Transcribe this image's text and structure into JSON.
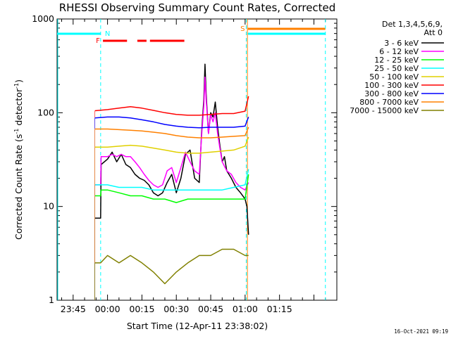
{
  "chart_data": {
    "type": "line",
    "title": "RHESSI Observing Summary Count Rates, Corrected",
    "xlabel": "Start Time (12-Apr-11 23:38:02)",
    "ylabel": "Corrected Count Rate (s",
    "ylabel_sup1": "-1",
    "ylabel_mid": " detector",
    "ylabel_sup2": "-1",
    "ylabel_end": ")",
    "yscale": "log",
    "ylim": [
      1,
      1000
    ],
    "xlim_minutes": [
      -22,
      100
    ],
    "x_tick_labels": [
      "23:45",
      "00:00",
      "00:15",
      "00:30",
      "00:45",
      "01:00",
      "01:15"
    ],
    "x_tick_minutes": [
      -15,
      0,
      15,
      30,
      45,
      60,
      75
    ],
    "y_tick_labels": [
      "1",
      "10",
      "100",
      "1000"
    ],
    "y_tick_values": [
      1,
      10,
      100,
      1000
    ],
    "legend_header_1": "Det 1,3,4,5,6,9,",
    "legend_header_2": "Att 0",
    "legend_position": "right",
    "series": [
      {
        "name": "3 - 6 keV",
        "color": "#000000",
        "points": [
          [
            -5.5,
            7.5
          ],
          [
            -3,
            7.5
          ],
          [
            -2.8,
            28
          ],
          [
            0,
            32
          ],
          [
            2,
            38
          ],
          [
            4,
            30
          ],
          [
            6,
            36
          ],
          [
            8,
            28
          ],
          [
            10,
            26
          ],
          [
            12,
            22
          ],
          [
            14,
            20
          ],
          [
            16,
            19
          ],
          [
            18,
            17
          ],
          [
            20,
            14
          ],
          [
            22,
            13
          ],
          [
            24,
            14
          ],
          [
            26,
            18
          ],
          [
            28,
            22
          ],
          [
            30,
            14
          ],
          [
            32,
            20
          ],
          [
            34,
            36
          ],
          [
            36,
            40
          ],
          [
            38,
            20
          ],
          [
            40,
            18
          ],
          [
            41,
            60
          ],
          [
            42,
            140
          ],
          [
            42.5,
            330
          ],
          [
            43,
            160
          ],
          [
            44,
            60
          ],
          [
            45,
            100
          ],
          [
            46,
            90
          ],
          [
            47,
            130
          ],
          [
            48,
            70
          ],
          [
            49,
            45
          ],
          [
            50,
            30
          ],
          [
            51,
            34
          ],
          [
            52,
            24
          ],
          [
            54,
            20
          ],
          [
            56,
            16
          ],
          [
            58,
            14
          ],
          [
            60,
            12
          ],
          [
            60.8,
            10
          ],
          [
            61.5,
            5
          ]
        ]
      },
      {
        "name": "6 - 12 keV",
        "color": "#ff00ff",
        "points": [
          [
            -5.5,
            17
          ],
          [
            -3,
            17
          ],
          [
            -2.8,
            34
          ],
          [
            0,
            34
          ],
          [
            2,
            36
          ],
          [
            4,
            34
          ],
          [
            6,
            36
          ],
          [
            8,
            34
          ],
          [
            10,
            34
          ],
          [
            12,
            30
          ],
          [
            14,
            26
          ],
          [
            16,
            22
          ],
          [
            18,
            19
          ],
          [
            20,
            17
          ],
          [
            22,
            16
          ],
          [
            24,
            17
          ],
          [
            26,
            24
          ],
          [
            28,
            26
          ],
          [
            30,
            18
          ],
          [
            32,
            26
          ],
          [
            34,
            38
          ],
          [
            36,
            30
          ],
          [
            38,
            24
          ],
          [
            40,
            22
          ],
          [
            41,
            55
          ],
          [
            42,
            120
          ],
          [
            42.5,
            240
          ],
          [
            43,
            140
          ],
          [
            44,
            60
          ],
          [
            45,
            95
          ],
          [
            46,
            80
          ],
          [
            47,
            100
          ],
          [
            48,
            60
          ],
          [
            49,
            42
          ],
          [
            50,
            30
          ],
          [
            52,
            24
          ],
          [
            54,
            22
          ],
          [
            56,
            18
          ],
          [
            58,
            16
          ],
          [
            60,
            15
          ],
          [
            61.5,
            18
          ]
        ]
      },
      {
        "name": "12 - 25 keV",
        "color": "#00ff00",
        "points": [
          [
            -5.5,
            13
          ],
          [
            -3,
            13
          ],
          [
            -2.8,
            15
          ],
          [
            0,
            15
          ],
          [
            5,
            14
          ],
          [
            10,
            13
          ],
          [
            15,
            13
          ],
          [
            20,
            12
          ],
          [
            25,
            12
          ],
          [
            30,
            11
          ],
          [
            35,
            12
          ],
          [
            40,
            12
          ],
          [
            45,
            12
          ],
          [
            50,
            12
          ],
          [
            55,
            12
          ],
          [
            60,
            12
          ],
          [
            61.5,
            22
          ]
        ]
      },
      {
        "name": "25 - 50 keV",
        "color": "#00ffff",
        "points": [
          [
            -5.5,
            17
          ],
          [
            0,
            17
          ],
          [
            5,
            16
          ],
          [
            10,
            16
          ],
          [
            15,
            16
          ],
          [
            20,
            15
          ],
          [
            25,
            15
          ],
          [
            30,
            15
          ],
          [
            35,
            15
          ],
          [
            40,
            15
          ],
          [
            45,
            15
          ],
          [
            50,
            15
          ],
          [
            55,
            16
          ],
          [
            60,
            17
          ],
          [
            61.5,
            25
          ]
        ]
      },
      {
        "name": "50 - 100 keV",
        "color": "#e0d000",
        "points": [
          [
            -5.5,
            43
          ],
          [
            0,
            43
          ],
          [
            5,
            44
          ],
          [
            10,
            45
          ],
          [
            15,
            44
          ],
          [
            20,
            42
          ],
          [
            25,
            40
          ],
          [
            30,
            38
          ],
          [
            35,
            37
          ],
          [
            40,
            37
          ],
          [
            45,
            38
          ],
          [
            50,
            39
          ],
          [
            55,
            40
          ],
          [
            60,
            44
          ],
          [
            61.5,
            55
          ]
        ]
      },
      {
        "name": "100 - 300 keV",
        "color": "#ff0000",
        "points": [
          [
            -5.5,
            105
          ],
          [
            0,
            108
          ],
          [
            5,
            112
          ],
          [
            10,
            116
          ],
          [
            15,
            112
          ],
          [
            20,
            106
          ],
          [
            25,
            100
          ],
          [
            30,
            96
          ],
          [
            35,
            94
          ],
          [
            40,
            94
          ],
          [
            45,
            96
          ],
          [
            50,
            98
          ],
          [
            55,
            98
          ],
          [
            60,
            104
          ],
          [
            61.5,
            150
          ]
        ]
      },
      {
        "name": "300 - 800 keV",
        "color": "#0000ff",
        "points": [
          [
            -5.5,
            88
          ],
          [
            0,
            90
          ],
          [
            5,
            90
          ],
          [
            10,
            88
          ],
          [
            15,
            84
          ],
          [
            20,
            80
          ],
          [
            25,
            75
          ],
          [
            30,
            72
          ],
          [
            35,
            70
          ],
          [
            40,
            69
          ],
          [
            45,
            70
          ],
          [
            50,
            70
          ],
          [
            55,
            70
          ],
          [
            60,
            72
          ],
          [
            61.5,
            90
          ]
        ]
      },
      {
        "name": "800 - 7000 keV",
        "color": "#ff8000",
        "points": [
          [
            -5.5,
            67
          ],
          [
            0,
            67
          ],
          [
            5,
            66
          ],
          [
            10,
            65
          ],
          [
            15,
            64
          ],
          [
            20,
            62
          ],
          [
            25,
            60
          ],
          [
            30,
            57
          ],
          [
            35,
            55
          ],
          [
            40,
            54
          ],
          [
            45,
            54
          ],
          [
            50,
            55
          ],
          [
            55,
            56
          ],
          [
            60,
            57
          ],
          [
            61.5,
            70
          ]
        ]
      },
      {
        "name": "7000 - 15000 keV",
        "color": "#808000",
        "points": [
          [
            -5.5,
            2.5
          ],
          [
            -3,
            2.5
          ],
          [
            0,
            3
          ],
          [
            5,
            2.5
          ],
          [
            10,
            3
          ],
          [
            15,
            2.5
          ],
          [
            20,
            2
          ],
          [
            25,
            1.5
          ],
          [
            30,
            2
          ],
          [
            35,
            2.5
          ],
          [
            40,
            3
          ],
          [
            45,
            3
          ],
          [
            50,
            3.5
          ],
          [
            55,
            3.5
          ],
          [
            60,
            3
          ],
          [
            61.5,
            3
          ]
        ]
      }
    ],
    "annotations": {
      "saa_label": "N",
      "flare_label": "F",
      "night_label": "S",
      "flare_segments": [
        [
          -2,
          8.5
        ],
        [
          13,
          17
        ],
        [
          18.5,
          33.5
        ]
      ],
      "saa_lines": [
        -3,
        60.5,
        95
      ],
      "night_line": 61,
      "saa_bars": [
        [
          -22,
          -3
        ],
        [
          61.2,
          95
        ]
      ],
      "night_bar": [
        61.2,
        95
      ]
    },
    "footer": "16-Oct-2021 09:19"
  }
}
